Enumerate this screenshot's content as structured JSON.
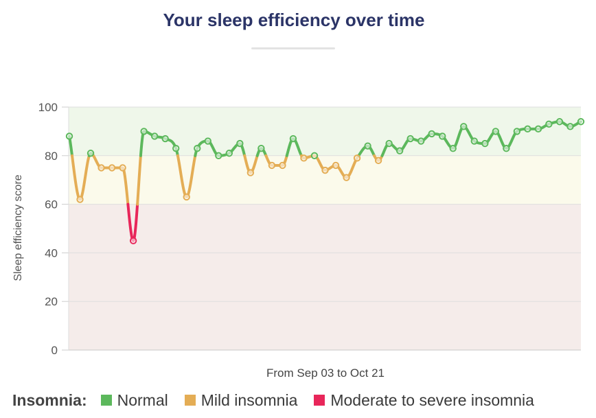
{
  "page": {
    "title": "Your sleep efficiency over time"
  },
  "chart_data": {
    "type": "line",
    "title": "Your sleep efficiency over time",
    "xlabel": "From Sep 03 to Oct 21",
    "ylabel": "Sleep efficiency score",
    "ylim": [
      0,
      100
    ],
    "yticks": [
      "0",
      "20",
      "40",
      "60",
      "80",
      "100"
    ],
    "grid": true,
    "legend_position": "bottom",
    "bands": [
      {
        "name": "Moderate to severe insomnia",
        "from": 0,
        "to": 60,
        "color": "#f5ecea"
      },
      {
        "name": "Mild insomnia",
        "from": 60,
        "to": 80,
        "color": "#fbfaeb"
      },
      {
        "name": "Normal",
        "from": 80,
        "to": 100,
        "color": "#eff7ea"
      }
    ],
    "thresholds": {
      "mild_below": 80,
      "severe_below": 60
    },
    "colors": {
      "normal": "#5cb85c",
      "mild": "#e4ad55",
      "severe": "#e8265a"
    },
    "points": 49,
    "values": [
      88,
      62,
      81,
      75,
      75,
      75,
      45,
      90,
      88,
      87,
      83,
      63,
      83,
      86,
      80,
      81,
      85,
      73,
      83,
      76,
      76,
      87,
      79,
      80,
      74,
      76,
      71,
      79,
      84,
      78,
      85,
      82,
      87,
      86,
      89,
      88,
      83,
      92,
      86,
      85,
      90,
      83,
      90,
      91,
      91,
      93,
      94,
      92,
      94
    ]
  },
  "legend": {
    "title": "Insomnia:",
    "items": [
      {
        "label": "Normal",
        "color": "#5cb85c"
      },
      {
        "label": "Mild insomnia",
        "color": "#e4ad55"
      },
      {
        "label": "Moderate to severe insomnia",
        "color": "#e8265a"
      }
    ]
  }
}
